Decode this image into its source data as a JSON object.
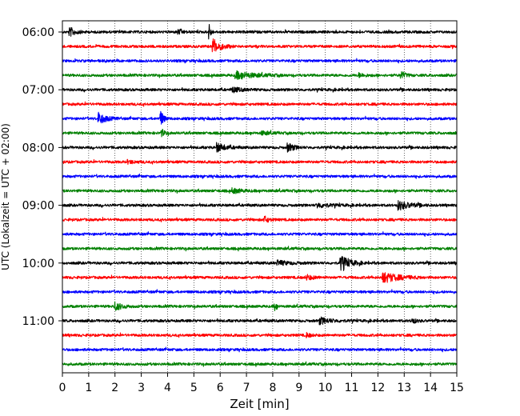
{
  "chart_data": {
    "type": "line",
    "title": "",
    "xlabel": "Zeit  [min]",
    "ylabel": "UTC (Lokalzeit = UTC + 02:00)",
    "xlim": [
      0,
      15
    ],
    "x_ticks": [
      0,
      1,
      2,
      3,
      4,
      5,
      6,
      7,
      8,
      9,
      10,
      11,
      12,
      13,
      14,
      15
    ],
    "y_tick_labels": [
      "06:00",
      "07:00",
      "08:00",
      "09:00",
      "10:00",
      "11:00"
    ],
    "y_tick_rows": [
      0,
      4,
      8,
      12,
      16,
      20
    ],
    "grid": "vertical dotted",
    "trace_colors": [
      "#000000",
      "#ff0000",
      "#0000ff",
      "#008000"
    ],
    "trace_interval_min": 15,
    "row_start_times": [
      "06:00",
      "06:15",
      "06:30",
      "06:45",
      "07:00",
      "07:15",
      "07:30",
      "07:45",
      "08:00",
      "08:15",
      "08:30",
      "08:45",
      "09:00",
      "09:15",
      "09:30",
      "09:45",
      "10:00",
      "10:15",
      "10:30",
      "10:45",
      "11:00",
      "11:15",
      "11:30",
      "11:45"
    ],
    "events": [
      {
        "row": 0,
        "x": 0.3,
        "amp": 0.55,
        "dur": 0.4
      },
      {
        "row": 0,
        "x": 4.4,
        "amp": 0.3,
        "dur": 0.3
      },
      {
        "row": 0,
        "x": 5.6,
        "amp": 1.0,
        "dur": 0.1
      },
      {
        "row": 1,
        "x": 5.75,
        "amp": 1.0,
        "dur": 0.5
      },
      {
        "row": 3,
        "x": 6.6,
        "amp": 0.5,
        "dur": 1.3
      },
      {
        "row": 3,
        "x": 12.9,
        "amp": 0.45,
        "dur": 0.3
      },
      {
        "row": 3,
        "x": 11.3,
        "amp": 0.25,
        "dur": 0.4
      },
      {
        "row": 4,
        "x": 6.5,
        "amp": 0.3,
        "dur": 0.6
      },
      {
        "row": 6,
        "x": 1.4,
        "amp": 0.75,
        "dur": 0.5
      },
      {
        "row": 6,
        "x": 3.75,
        "amp": 1.0,
        "dur": 0.2
      },
      {
        "row": 7,
        "x": 3.8,
        "amp": 0.4,
        "dur": 0.2
      },
      {
        "row": 7,
        "x": 7.6,
        "amp": 0.25,
        "dur": 0.5
      },
      {
        "row": 8,
        "x": 5.9,
        "amp": 0.55,
        "dur": 0.6
      },
      {
        "row": 8,
        "x": 8.6,
        "amp": 0.55,
        "dur": 0.4
      },
      {
        "row": 9,
        "x": 2.5,
        "amp": 0.2,
        "dur": 0.5
      },
      {
        "row": 11,
        "x": 6.5,
        "amp": 0.3,
        "dur": 0.6
      },
      {
        "row": 12,
        "x": 12.8,
        "amp": 0.6,
        "dur": 0.8
      },
      {
        "row": 12,
        "x": 9.7,
        "amp": 0.3,
        "dur": 0.8
      },
      {
        "row": 13,
        "x": 7.7,
        "amp": 0.4,
        "dur": 0.3
      },
      {
        "row": 16,
        "x": 10.6,
        "amp": 1.0,
        "dur": 0.6
      },
      {
        "row": 16,
        "x": 8.2,
        "amp": 0.3,
        "dur": 0.8
      },
      {
        "row": 17,
        "x": 12.2,
        "amp": 0.7,
        "dur": 1.1
      },
      {
        "row": 17,
        "x": 9.3,
        "amp": 0.3,
        "dur": 0.5
      },
      {
        "row": 19,
        "x": 2.0,
        "amp": 0.55,
        "dur": 0.5
      },
      {
        "row": 19,
        "x": 8.1,
        "amp": 0.6,
        "dur": 0.1
      },
      {
        "row": 20,
        "x": 9.8,
        "amp": 0.4,
        "dur": 0.8
      },
      {
        "row": 20,
        "x": 13.3,
        "amp": 0.35,
        "dur": 0.3
      },
      {
        "row": 21,
        "x": 9.3,
        "amp": 0.25,
        "dur": 0.3
      }
    ]
  }
}
